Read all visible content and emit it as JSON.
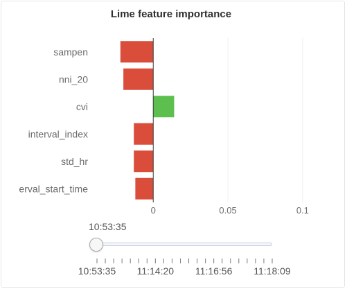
{
  "chart_data": {
    "type": "bar",
    "orientation": "horizontal",
    "title": "Lime feature importance",
    "categories": [
      "sampen",
      "nni_20",
      "cvi",
      "interval_index",
      "std_hr",
      "erval_start_time"
    ],
    "values": [
      -0.022,
      -0.02,
      0.014,
      -0.013,
      -0.013,
      -0.012
    ],
    "xlim": [
      -0.04,
      0.12
    ],
    "xticks": [
      0,
      0.05,
      0.1
    ],
    "xtick_labels": [
      "0",
      "0.05",
      "0.1"
    ],
    "grid": true,
    "colors": {
      "positive": "#5cbf4e",
      "negative": "#db4d3b"
    }
  },
  "slider": {
    "current_time": "10:53:35",
    "value_fraction": 0,
    "marks": [
      "10:53:35",
      "11:14:20",
      "11:16:56",
      "11:18:09"
    ]
  }
}
